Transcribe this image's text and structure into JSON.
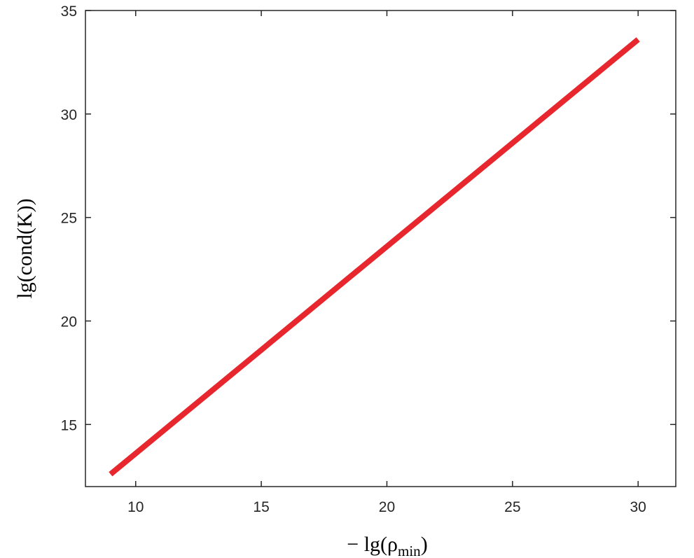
{
  "chart_data": {
    "type": "line",
    "title": "",
    "xlabel": {
      "prefix": "− lg(ρ",
      "subscript": "min",
      "suffix": ")"
    },
    "ylabel": "lg(cond(K))",
    "xlim": [
      8,
      31.5
    ],
    "ylim": [
      12,
      35
    ],
    "xticks": [
      10,
      15,
      20,
      25,
      30
    ],
    "yticks": [
      15,
      20,
      25,
      30,
      35
    ],
    "grid": false,
    "legend": "none",
    "series": [
      {
        "color": "#e8262d",
        "x": [
          9,
          30
        ],
        "y": [
          12.6,
          33.6
        ]
      }
    ]
  }
}
